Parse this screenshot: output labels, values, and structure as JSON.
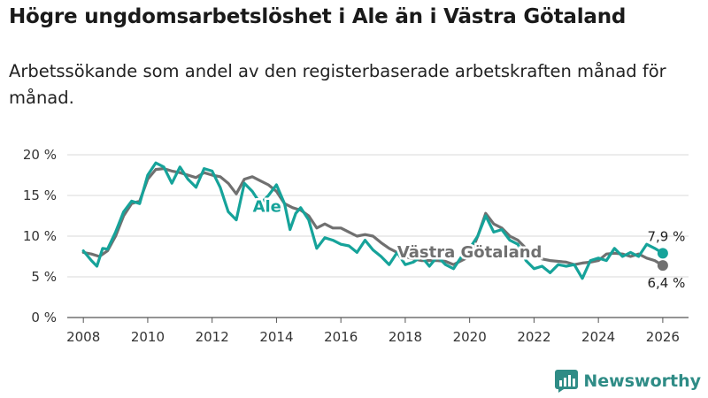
{
  "header": {
    "title": "Högre ungdomsarbetslöshet i Ale än i Västra Götaland",
    "subtitle": "Arbetssökande som andel av den registerbaserade arbetskraften månad för månad."
  },
  "colors": {
    "ale": "#16a39a",
    "vg": "#707070",
    "grid": "#d9d9d9",
    "brand": "#2f8c86"
  },
  "brand": {
    "name": "Newsworthy",
    "icon": "bar-chart-logo-icon"
  },
  "chart_data": {
    "type": "line",
    "xlabel": "",
    "ylabel": "",
    "xlim": [
      2007.5,
      2026.8
    ],
    "ylim": [
      0,
      20
    ],
    "x_ticks": [
      "2008",
      "2010",
      "2012",
      "2014",
      "2016",
      "2018",
      "2020",
      "2022",
      "2024",
      "2026"
    ],
    "y_ticks": [
      "0 %",
      "5 %",
      "10 %",
      "15 %",
      "20 %"
    ],
    "grid": true,
    "series": [
      {
        "name": "Västra Götaland",
        "label": "Västra Götaland",
        "end_label": "6,4 %",
        "color": "#707070",
        "points": [
          [
            2008.0,
            8.0
          ],
          [
            2008.25,
            7.8
          ],
          [
            2008.5,
            7.5
          ],
          [
            2008.75,
            8.2
          ],
          [
            2009.0,
            10.0
          ],
          [
            2009.25,
            12.5
          ],
          [
            2009.5,
            14.0
          ],
          [
            2009.75,
            14.3
          ],
          [
            2010.0,
            17.0
          ],
          [
            2010.25,
            18.2
          ],
          [
            2010.5,
            18.3
          ],
          [
            2010.75,
            18.0
          ],
          [
            2011.0,
            17.8
          ],
          [
            2011.25,
            17.5
          ],
          [
            2011.5,
            17.2
          ],
          [
            2011.75,
            17.8
          ],
          [
            2012.0,
            17.5
          ],
          [
            2012.25,
            17.3
          ],
          [
            2012.5,
            16.5
          ],
          [
            2012.75,
            15.2
          ],
          [
            2013.0,
            17.0
          ],
          [
            2013.25,
            17.3
          ],
          [
            2013.5,
            16.8
          ],
          [
            2013.75,
            16.3
          ],
          [
            2014.0,
            15.5
          ],
          [
            2014.25,
            14.0
          ],
          [
            2014.5,
            13.5
          ],
          [
            2014.75,
            13.2
          ],
          [
            2015.0,
            12.5
          ],
          [
            2015.25,
            11.0
          ],
          [
            2015.5,
            11.5
          ],
          [
            2015.75,
            11.0
          ],
          [
            2016.0,
            11.0
          ],
          [
            2016.25,
            10.5
          ],
          [
            2016.5,
            10.0
          ],
          [
            2016.75,
            10.2
          ],
          [
            2017.0,
            10.0
          ],
          [
            2017.25,
            9.2
          ],
          [
            2017.5,
            8.5
          ],
          [
            2017.75,
            8.0
          ],
          [
            2018.0,
            7.5
          ],
          [
            2018.25,
            7.2
          ],
          [
            2018.5,
            7.0
          ],
          [
            2018.75,
            7.0
          ],
          [
            2019.0,
            7.0
          ],
          [
            2019.25,
            6.9
          ],
          [
            2019.5,
            6.5
          ],
          [
            2019.75,
            7.0
          ],
          [
            2020.0,
            7.5
          ],
          [
            2020.25,
            10.0
          ],
          [
            2020.5,
            12.8
          ],
          [
            2020.75,
            11.5
          ],
          [
            2021.0,
            11.0
          ],
          [
            2021.25,
            10.0
          ],
          [
            2021.5,
            9.5
          ],
          [
            2021.75,
            8.5
          ],
          [
            2022.0,
            7.8
          ],
          [
            2022.25,
            7.2
          ],
          [
            2022.5,
            7.0
          ],
          [
            2022.75,
            6.9
          ],
          [
            2023.0,
            6.8
          ],
          [
            2023.25,
            6.5
          ],
          [
            2023.5,
            6.7
          ],
          [
            2023.75,
            6.8
          ],
          [
            2024.0,
            7.0
          ],
          [
            2024.25,
            7.8
          ],
          [
            2024.5,
            7.9
          ],
          [
            2024.75,
            7.8
          ],
          [
            2025.0,
            7.5
          ],
          [
            2025.25,
            7.8
          ],
          [
            2025.5,
            7.3
          ],
          [
            2025.75,
            7.0
          ],
          [
            2026.0,
            6.4
          ]
        ]
      },
      {
        "name": "Ale",
        "label": "Ale",
        "end_label": "7,9 %",
        "color": "#16a39a",
        "points": [
          [
            2008.0,
            8.2
          ],
          [
            2008.25,
            7.0
          ],
          [
            2008.42,
            6.3
          ],
          [
            2008.6,
            8.5
          ],
          [
            2008.75,
            8.4
          ],
          [
            2009.0,
            10.5
          ],
          [
            2009.25,
            13.0
          ],
          [
            2009.5,
            14.3
          ],
          [
            2009.75,
            14.0
          ],
          [
            2010.0,
            17.5
          ],
          [
            2010.25,
            19.0
          ],
          [
            2010.5,
            18.5
          ],
          [
            2010.75,
            16.5
          ],
          [
            2011.0,
            18.5
          ],
          [
            2011.25,
            17.0
          ],
          [
            2011.5,
            16.0
          ],
          [
            2011.75,
            18.3
          ],
          [
            2012.0,
            18.0
          ],
          [
            2012.25,
            16.0
          ],
          [
            2012.5,
            13.0
          ],
          [
            2012.75,
            12.0
          ],
          [
            2013.0,
            16.5
          ],
          [
            2013.25,
            15.5
          ],
          [
            2013.5,
            14.0
          ],
          [
            2013.75,
            15.0
          ],
          [
            2014.0,
            16.3
          ],
          [
            2014.25,
            14.0
          ],
          [
            2014.42,
            10.8
          ],
          [
            2014.6,
            12.8
          ],
          [
            2014.75,
            13.5
          ],
          [
            2015.0,
            12.0
          ],
          [
            2015.25,
            8.5
          ],
          [
            2015.5,
            9.8
          ],
          [
            2015.75,
            9.5
          ],
          [
            2016.0,
            9.0
          ],
          [
            2016.25,
            8.8
          ],
          [
            2016.5,
            8.0
          ],
          [
            2016.75,
            9.5
          ],
          [
            2017.0,
            8.3
          ],
          [
            2017.25,
            7.5
          ],
          [
            2017.5,
            6.5
          ],
          [
            2017.75,
            8.0
          ],
          [
            2018.0,
            6.5
          ],
          [
            2018.25,
            6.8
          ],
          [
            2018.5,
            7.5
          ],
          [
            2018.75,
            6.3
          ],
          [
            2019.0,
            7.5
          ],
          [
            2019.25,
            6.5
          ],
          [
            2019.5,
            6.0
          ],
          [
            2019.75,
            7.5
          ],
          [
            2020.0,
            8.5
          ],
          [
            2020.25,
            10.0
          ],
          [
            2020.5,
            12.5
          ],
          [
            2020.75,
            10.5
          ],
          [
            2021.0,
            10.8
          ],
          [
            2021.25,
            9.5
          ],
          [
            2021.5,
            9.0
          ],
          [
            2021.75,
            7.0
          ],
          [
            2022.0,
            6.0
          ],
          [
            2022.25,
            6.3
          ],
          [
            2022.5,
            5.5
          ],
          [
            2022.75,
            6.5
          ],
          [
            2023.0,
            6.3
          ],
          [
            2023.25,
            6.5
          ],
          [
            2023.5,
            4.8
          ],
          [
            2023.75,
            7.0
          ],
          [
            2024.0,
            7.3
          ],
          [
            2024.25,
            7.0
          ],
          [
            2024.5,
            8.5
          ],
          [
            2024.75,
            7.5
          ],
          [
            2025.0,
            8.0
          ],
          [
            2025.25,
            7.5
          ],
          [
            2025.5,
            9.0
          ],
          [
            2025.75,
            8.5
          ],
          [
            2026.0,
            7.9
          ]
        ]
      }
    ]
  }
}
